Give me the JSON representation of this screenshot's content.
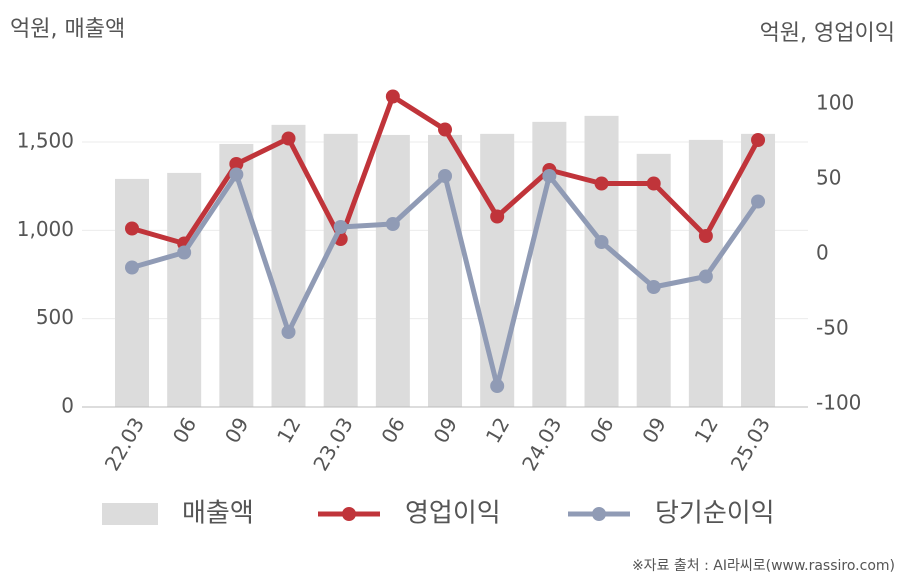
{
  "chart_data": {
    "type": "bar",
    "y_label": "억원, 매출액",
    "y2_label": "억원, 영업이익",
    "source": "※자료 출처 : AI라씨로(www.rassiro.com)",
    "categories": [
      "22.03",
      "06",
      "09",
      "12",
      "23.03",
      "06",
      "09",
      "12",
      "24.03",
      "06",
      "09",
      "12",
      "25.03"
    ],
    "series": [
      {
        "name": "매출액",
        "type": "bar",
        "color": "#dcdcdc",
        "values": [
          1291,
          1325,
          1489,
          1597,
          1546,
          1540,
          1540,
          1546,
          1614,
          1648,
          1433,
          1512,
          1546
        ]
      },
      {
        "name": "영업이익",
        "type": "line",
        "axis": "y2",
        "color": "#c0343a",
        "values": [
          17,
          7,
          60,
          77,
          10,
          105,
          83,
          25,
          56,
          47,
          47,
          12,
          76
        ]
      },
      {
        "name": "당기순이익",
        "type": "line",
        "axis": "y2",
        "color": "#909bb5",
        "values": [
          -9,
          1,
          53,
          -52,
          18,
          20,
          52,
          -88,
          52,
          8,
          -22,
          -15,
          35
        ]
      }
    ],
    "ylim": [
      0,
      1800
    ],
    "yticks": [
      0,
      500,
      {
        "value": 1000,
        "label": "1,000"
      },
      {
        "value": 1500,
        "label": "1,500"
      }
    ],
    "y2lim": [
      -102,
      110
    ],
    "y2ticks": [
      -100,
      -50,
      0,
      50,
      100
    ],
    "grid": true
  }
}
